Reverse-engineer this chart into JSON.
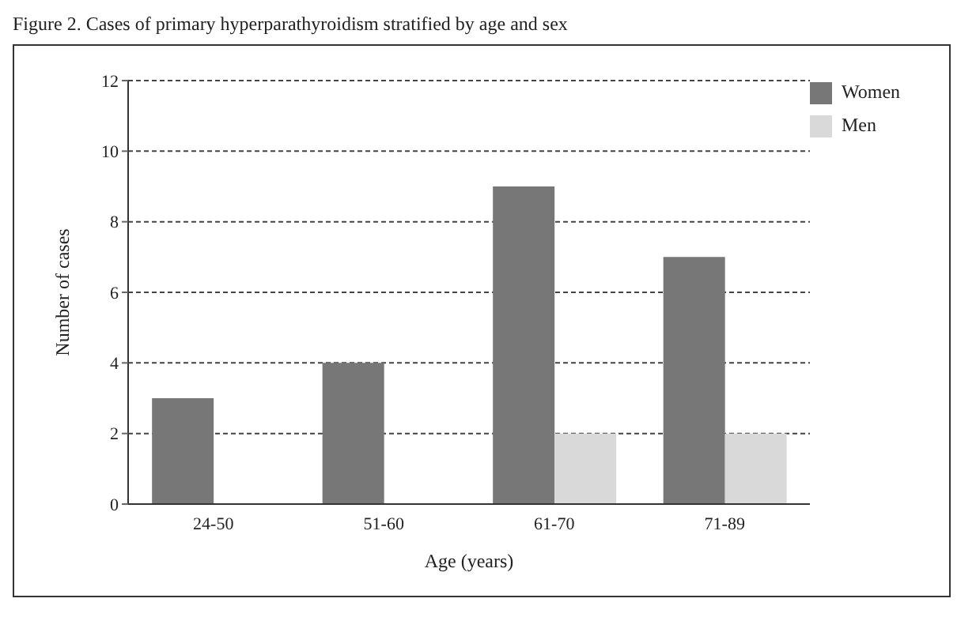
{
  "chart_data": {
    "type": "bar",
    "title": "Figure 2. Cases of primary hyperparathyroidism stratified by age and sex",
    "xlabel": "Age (years)",
    "ylabel": "Number of cases",
    "categories": [
      "24-50",
      "51-60",
      "61-70",
      "71-89"
    ],
    "series": [
      {
        "name": "Women",
        "color": "#777777",
        "values": [
          3,
          4,
          9,
          7
        ]
      },
      {
        "name": "Men",
        "color": "#d9d9d9",
        "values": [
          null,
          null,
          2,
          2
        ]
      }
    ],
    "ylim": [
      0,
      12
    ],
    "yticks": [
      0,
      2,
      4,
      6,
      8,
      10,
      12
    ],
    "grid": "y",
    "legend": "top right"
  }
}
